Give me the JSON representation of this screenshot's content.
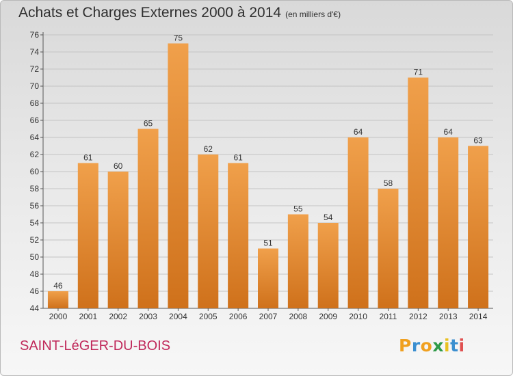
{
  "chart_data": {
    "type": "bar",
    "title": "Achats et Charges Externes 2000 à 2014",
    "subtitle": "(en milliers d'€)",
    "categories": [
      "2000",
      "2001",
      "2002",
      "2003",
      "2004",
      "2005",
      "2006",
      "2007",
      "2008",
      "2009",
      "2010",
      "2011",
      "2012",
      "2013",
      "2014"
    ],
    "values": [
      46,
      61,
      60,
      65,
      75,
      62,
      61,
      51,
      55,
      54,
      64,
      58,
      71,
      64,
      63
    ],
    "ylim": [
      44,
      76
    ],
    "yticks": [
      44,
      46,
      48,
      50,
      52,
      54,
      56,
      58,
      60,
      62,
      64,
      66,
      68,
      70,
      72,
      74,
      76
    ],
    "grid": true,
    "bar_color": "#f0a04b",
    "bar_color_dark": "#cf711b"
  },
  "footer": {
    "commune": "SAINT-LéGER-DU-BOIS"
  },
  "logo": {
    "letters": [
      "P",
      "r",
      "o",
      "x",
      "i",
      "t",
      "i"
    ],
    "colors": [
      "#f0a020",
      "#3b8fd0",
      "#f0a020",
      "#2f9a48",
      "#e8c020",
      "#3b8fd0",
      "#e05050"
    ]
  }
}
